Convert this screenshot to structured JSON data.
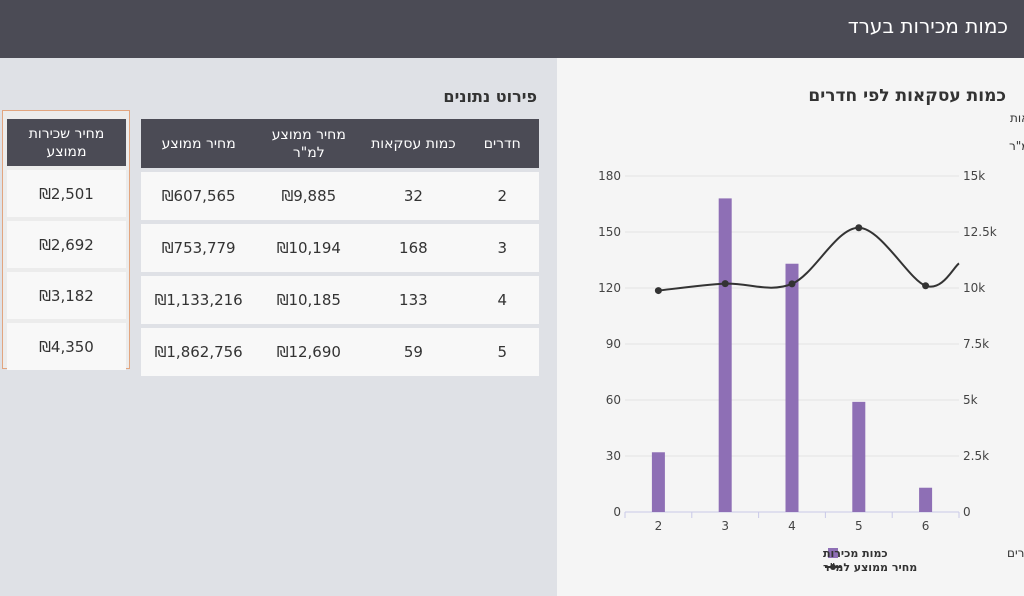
{
  "header": {
    "title": "כמות מכירות בערד"
  },
  "chart_panel": {
    "title": "כמות עסקאות לפי חדרים"
  },
  "table_section": {
    "title": "פירוט נתונים"
  },
  "table": {
    "headers": [
      "חדרים",
      "כמות עסקאות",
      "מחיר ממוצע למ\"ר",
      "מחיר ממוצע"
    ],
    "rows": [
      [
        "2",
        "32",
        "₪9,885",
        "₪607,565"
      ],
      [
        "3",
        "168",
        "₪10,194",
        "₪753,779"
      ],
      [
        "4",
        "133",
        "₪10,185",
        "₪1,133,216"
      ],
      [
        "5",
        "59",
        "₪12,690",
        "₪1,862,756"
      ]
    ]
  },
  "rent_table": {
    "header": "מחיר שכירות ממוצע",
    "values": [
      "₪2,501",
      "₪2,692",
      "₪3,182",
      "₪4,350"
    ]
  },
  "chart_data": {
    "type": "bar",
    "categories": [
      "2",
      "3",
      "4",
      "5",
      "6"
    ],
    "xlabel": "חדרים",
    "ylabel_left": "כמות עסקאות",
    "ylabel_right": "מחיר ממוצע למ\"ר",
    "ylim_left": [
      0,
      180
    ],
    "ylim_right": [
      0,
      15000
    ],
    "yticks_left": [
      "0",
      "30",
      "60",
      "90",
      "120",
      "150",
      "180"
    ],
    "yticks_right": [
      "0",
      "2.5k",
      "5k",
      "7.5k",
      "10k",
      "12.5k",
      "15k"
    ],
    "series": [
      {
        "name": "כמות מכירות",
        "type": "bar",
        "axis": "left",
        "values": [
          32,
          168,
          133,
          59,
          13
        ],
        "color": "#8e6fb5"
      },
      {
        "name": "מחיר ממוצע למ\"ר",
        "type": "line",
        "axis": "right",
        "values": [
          9885,
          10194,
          10185,
          12690,
          10100
        ],
        "color": "#333333"
      }
    ],
    "legend_position": "bottom",
    "grid": true
  }
}
